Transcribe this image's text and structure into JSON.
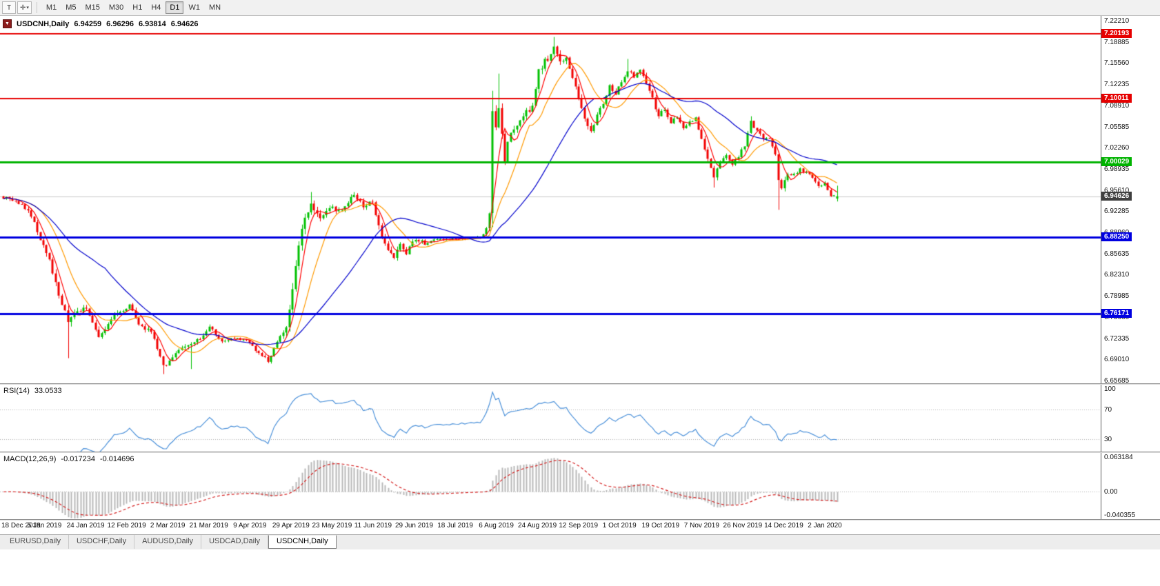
{
  "toolbar": {
    "template_icon_glyph": "T",
    "cursor_icon_glyph": "✛",
    "caret_glyph": "▾",
    "timeframes": [
      "M1",
      "M5",
      "M15",
      "M30",
      "H1",
      "H4",
      "D1",
      "W1",
      "MN"
    ],
    "active_timeframe": "D1"
  },
  "main_chart": {
    "marker_glyph": "▼",
    "symbol": "USDCNH,Daily",
    "ohlc": {
      "open": "6.94259",
      "high": "6.96296",
      "low": "6.93814",
      "close": "6.94626"
    }
  },
  "chart_data": {
    "type": "candlestick",
    "symbol": "USDCNH",
    "timeframe": "Daily",
    "bar_count": 272,
    "last_ohlc": {
      "open": 6.94259,
      "high": 6.96296,
      "low": 6.93814,
      "close": 6.94626
    },
    "current_price": 6.94626,
    "current_price_badge": {
      "label": "6.94626",
      "color": "#3f3f3f"
    },
    "colors": {
      "up": "#00c000",
      "down": "#f20000",
      "bid_line": "#c8c8c8"
    },
    "y_axis": {
      "top_tick": 7.2221,
      "tick_step": 0.03325,
      "ticks": [
        "7.22210",
        "7.18885",
        "7.15560",
        "7.12235",
        "7.08910",
        "7.05585",
        "7.02260",
        "6.98935",
        "6.95610",
        "6.92285",
        "6.88960",
        "6.85635",
        "6.82310",
        "6.78985",
        "6.75660",
        "6.72335",
        "6.69010",
        "6.65685"
      ]
    },
    "x_labels": [
      "18 Dec 2018",
      "5 Jan 2019",
      "24 Jan 2019",
      "12 Feb 2019",
      "2 Mar 2019",
      "21 Mar 2019",
      "9 Apr 2019",
      "29 Apr 2019",
      "23 May 2019",
      "11 Jun 2019",
      "29 Jun 2019",
      "18 Jul 2019",
      "6 Aug 2019",
      "24 Aug 2019",
      "12 Sep 2019",
      "1 Oct 2019",
      "19 Oct 2019",
      "7 Nov 2019",
      "26 Nov 2019",
      "14 Dec 2019",
      "2 Jan 2020"
    ],
    "horizontal_lines": [
      {
        "price": 7.20193,
        "label": "7.20193",
        "color": "#e60000",
        "width": 2
      },
      {
        "price": 7.10011,
        "label": "7.10011",
        "color": "#e60000",
        "width": 2
      },
      {
        "price": 7.00029,
        "label": "7.00029",
        "color": "#00b300",
        "width": 3
      },
      {
        "price": 6.8825,
        "label": "6.88250",
        "color": "#0000e0",
        "width": 3
      },
      {
        "price": 6.76171,
        "label": "6.76171",
        "color": "#0000e0",
        "width": 3
      }
    ],
    "moving_averages": [
      {
        "name": "ma-mid",
        "period": 13,
        "color": "#ff9900"
      },
      {
        "name": "ma-fast",
        "period": 5,
        "color": "#ff0000"
      },
      {
        "name": "ma-slow",
        "period": 34,
        "color": "#0000cc"
      }
    ],
    "close_anchors": [
      [
        0,
        6.945,
        0.01
      ],
      [
        4,
        6.938,
        0.01
      ],
      [
        8,
        6.926,
        0.01
      ],
      [
        12,
        6.88,
        0.012
      ],
      [
        15,
        6.845,
        0.014
      ],
      [
        18,
        6.792,
        0.016
      ],
      [
        21,
        6.748,
        0.018
      ],
      [
        24,
        6.765,
        0.014
      ],
      [
        27,
        6.772,
        0.012
      ],
      [
        31,
        6.722,
        0.012
      ],
      [
        36,
        6.76,
        0.012
      ],
      [
        41,
        6.775,
        0.012
      ],
      [
        44,
        6.742,
        0.01
      ],
      [
        48,
        6.735,
        0.01
      ],
      [
        52,
        6.678,
        0.012
      ],
      [
        56,
        6.7,
        0.01
      ],
      [
        60,
        6.712,
        0.01
      ],
      [
        64,
        6.722,
        0.008
      ],
      [
        67,
        6.742,
        0.008
      ],
      [
        71,
        6.718,
        0.008
      ],
      [
        75,
        6.724,
        0.007
      ],
      [
        79,
        6.72,
        0.007
      ],
      [
        83,
        6.7,
        0.008
      ],
      [
        86,
        6.688,
        0.008
      ],
      [
        89,
        6.718,
        0.008
      ],
      [
        92,
        6.738,
        0.012
      ],
      [
        94,
        6.8,
        0.022
      ],
      [
        96,
        6.872,
        0.024
      ],
      [
        98,
        6.915,
        0.02
      ],
      [
        100,
        6.935,
        0.016
      ],
      [
        103,
        6.912,
        0.012
      ],
      [
        106,
        6.93,
        0.01
      ],
      [
        109,
        6.922,
        0.01
      ],
      [
        112,
        6.938,
        0.01
      ],
      [
        114,
        6.948,
        0.01
      ],
      [
        117,
        6.93,
        0.01
      ],
      [
        120,
        6.938,
        0.01
      ],
      [
        123,
        6.885,
        0.018
      ],
      [
        125,
        6.862,
        0.014
      ],
      [
        127,
        6.848,
        0.012
      ],
      [
        129,
        6.872,
        0.012
      ],
      [
        131,
        6.858,
        0.01
      ],
      [
        134,
        6.88,
        0.01
      ],
      [
        137,
        6.872,
        0.008
      ],
      [
        140,
        6.88,
        0.006
      ],
      [
        144,
        6.878,
        0.005
      ],
      [
        148,
        6.88,
        0.005
      ],
      [
        152,
        6.882,
        0.005
      ],
      [
        155,
        6.88,
        0.006
      ],
      [
        157,
        6.895,
        0.01
      ],
      [
        158,
        6.92,
        0.014
      ],
      [
        159,
        7.08,
        0.04
      ],
      [
        160,
        7.06,
        0.03
      ],
      [
        161,
        7.09,
        0.028
      ],
      [
        162,
        7.05,
        0.024
      ],
      [
        163,
        6.998,
        0.024
      ],
      [
        164,
        7.03,
        0.02
      ],
      [
        166,
        7.055,
        0.016
      ],
      [
        168,
        7.062,
        0.014
      ],
      [
        170,
        7.08,
        0.014
      ],
      [
        172,
        7.085,
        0.014
      ],
      [
        174,
        7.14,
        0.02
      ],
      [
        176,
        7.158,
        0.016
      ],
      [
        178,
        7.168,
        0.014
      ],
      [
        179,
        7.185,
        0.014
      ],
      [
        181,
        7.155,
        0.014
      ],
      [
        183,
        7.162,
        0.012
      ],
      [
        185,
        7.132,
        0.014
      ],
      [
        187,
        7.102,
        0.014
      ],
      [
        189,
        7.068,
        0.014
      ],
      [
        191,
        7.048,
        0.012
      ],
      [
        193,
        7.072,
        0.012
      ],
      [
        195,
        7.092,
        0.012
      ],
      [
        197,
        7.118,
        0.012
      ],
      [
        199,
        7.108,
        0.01
      ],
      [
        201,
        7.128,
        0.01
      ],
      [
        203,
        7.142,
        0.012
      ],
      [
        205,
        7.135,
        0.01
      ],
      [
        207,
        7.148,
        0.012
      ],
      [
        209,
        7.122,
        0.012
      ],
      [
        211,
        7.1,
        0.012
      ],
      [
        213,
        7.072,
        0.012
      ],
      [
        215,
        7.082,
        0.01
      ],
      [
        217,
        7.062,
        0.01
      ],
      [
        219,
        7.07,
        0.01
      ],
      [
        221,
        7.052,
        0.01
      ],
      [
        223,
        7.062,
        0.008
      ],
      [
        225,
        7.068,
        0.008
      ],
      [
        227,
        7.038,
        0.01
      ],
      [
        229,
        7.002,
        0.012
      ],
      [
        231,
        6.978,
        0.012
      ],
      [
        233,
        7.0,
        0.01
      ],
      [
        235,
        7.012,
        0.008
      ],
      [
        237,
        6.996,
        0.008
      ],
      [
        239,
        7.01,
        0.008
      ],
      [
        241,
        7.026,
        0.008
      ],
      [
        243,
        7.062,
        0.012
      ],
      [
        245,
        7.052,
        0.01
      ],
      [
        247,
        7.038,
        0.008
      ],
      [
        249,
        7.036,
        0.006
      ],
      [
        251,
        7.008,
        0.014
      ],
      [
        252,
        6.972,
        0.022
      ],
      [
        253,
        6.962,
        0.014
      ],
      [
        255,
        6.978,
        0.01
      ],
      [
        257,
        6.982,
        0.008
      ],
      [
        259,
        6.988,
        0.008
      ],
      [
        261,
        6.984,
        0.006
      ],
      [
        263,
        6.976,
        0.006
      ],
      [
        265,
        6.962,
        0.008
      ],
      [
        267,
        6.968,
        0.008
      ],
      [
        269,
        6.948,
        0.01
      ],
      [
        271,
        6.94626,
        0.008
      ]
    ],
    "events": [
      {
        "bar": 21,
        "l": 6.692
      },
      {
        "bar": 52,
        "l": 6.667
      },
      {
        "bar": 61,
        "l": 6.675
      },
      {
        "bar": 100,
        "h": 6.953
      },
      {
        "bar": 159,
        "o": 6.92,
        "c": 7.08,
        "h": 7.112,
        "l": 6.898
      },
      {
        "bar": 161,
        "h": 7.139
      },
      {
        "bar": 179,
        "h": 7.1965
      },
      {
        "bar": 203,
        "h": 7.162
      },
      {
        "bar": 231,
        "l": 6.96
      },
      {
        "bar": 243,
        "h": 7.072
      },
      {
        "bar": 252,
        "l": 6.925
      },
      {
        "bar": 271,
        "o": 6.94259,
        "h": 6.96296,
        "l": 6.93814,
        "c": 6.94626
      }
    ],
    "rsi": {
      "label": "RSI(14)",
      "value": "33.0533",
      "period": 14,
      "levels": [
        70,
        30
      ],
      "axis_labels": [
        "100",
        "70",
        "30"
      ],
      "axis_values": [
        100,
        70,
        30
      ],
      "scale_max": 100,
      "scale_min": 20,
      "color": "#4a90d9"
    },
    "macd": {
      "label": "MACD(12,26,9)",
      "macd_value": "-0.017234",
      "signal_value": "-0.014696",
      "fast": 12,
      "slow": 26,
      "signal": 9,
      "axis_labels": [
        "0.063184",
        "0.00",
        "-0.040355"
      ],
      "axis_values": [
        0.063184,
        0,
        -0.040355
      ],
      "scale_max": 0.063184,
      "scale_min": -0.040355,
      "hist_color": "#b8b8b8",
      "signal_color": "#d42020"
    }
  },
  "bottom_tabs": {
    "tabs": [
      {
        "label": "EURUSD,Daily"
      },
      {
        "label": "USDCHF,Daily"
      },
      {
        "label": "AUDUSD,Daily"
      },
      {
        "label": "USDCAD,Daily"
      },
      {
        "label": "USDCNH,Daily"
      }
    ],
    "active_index": 4
  }
}
